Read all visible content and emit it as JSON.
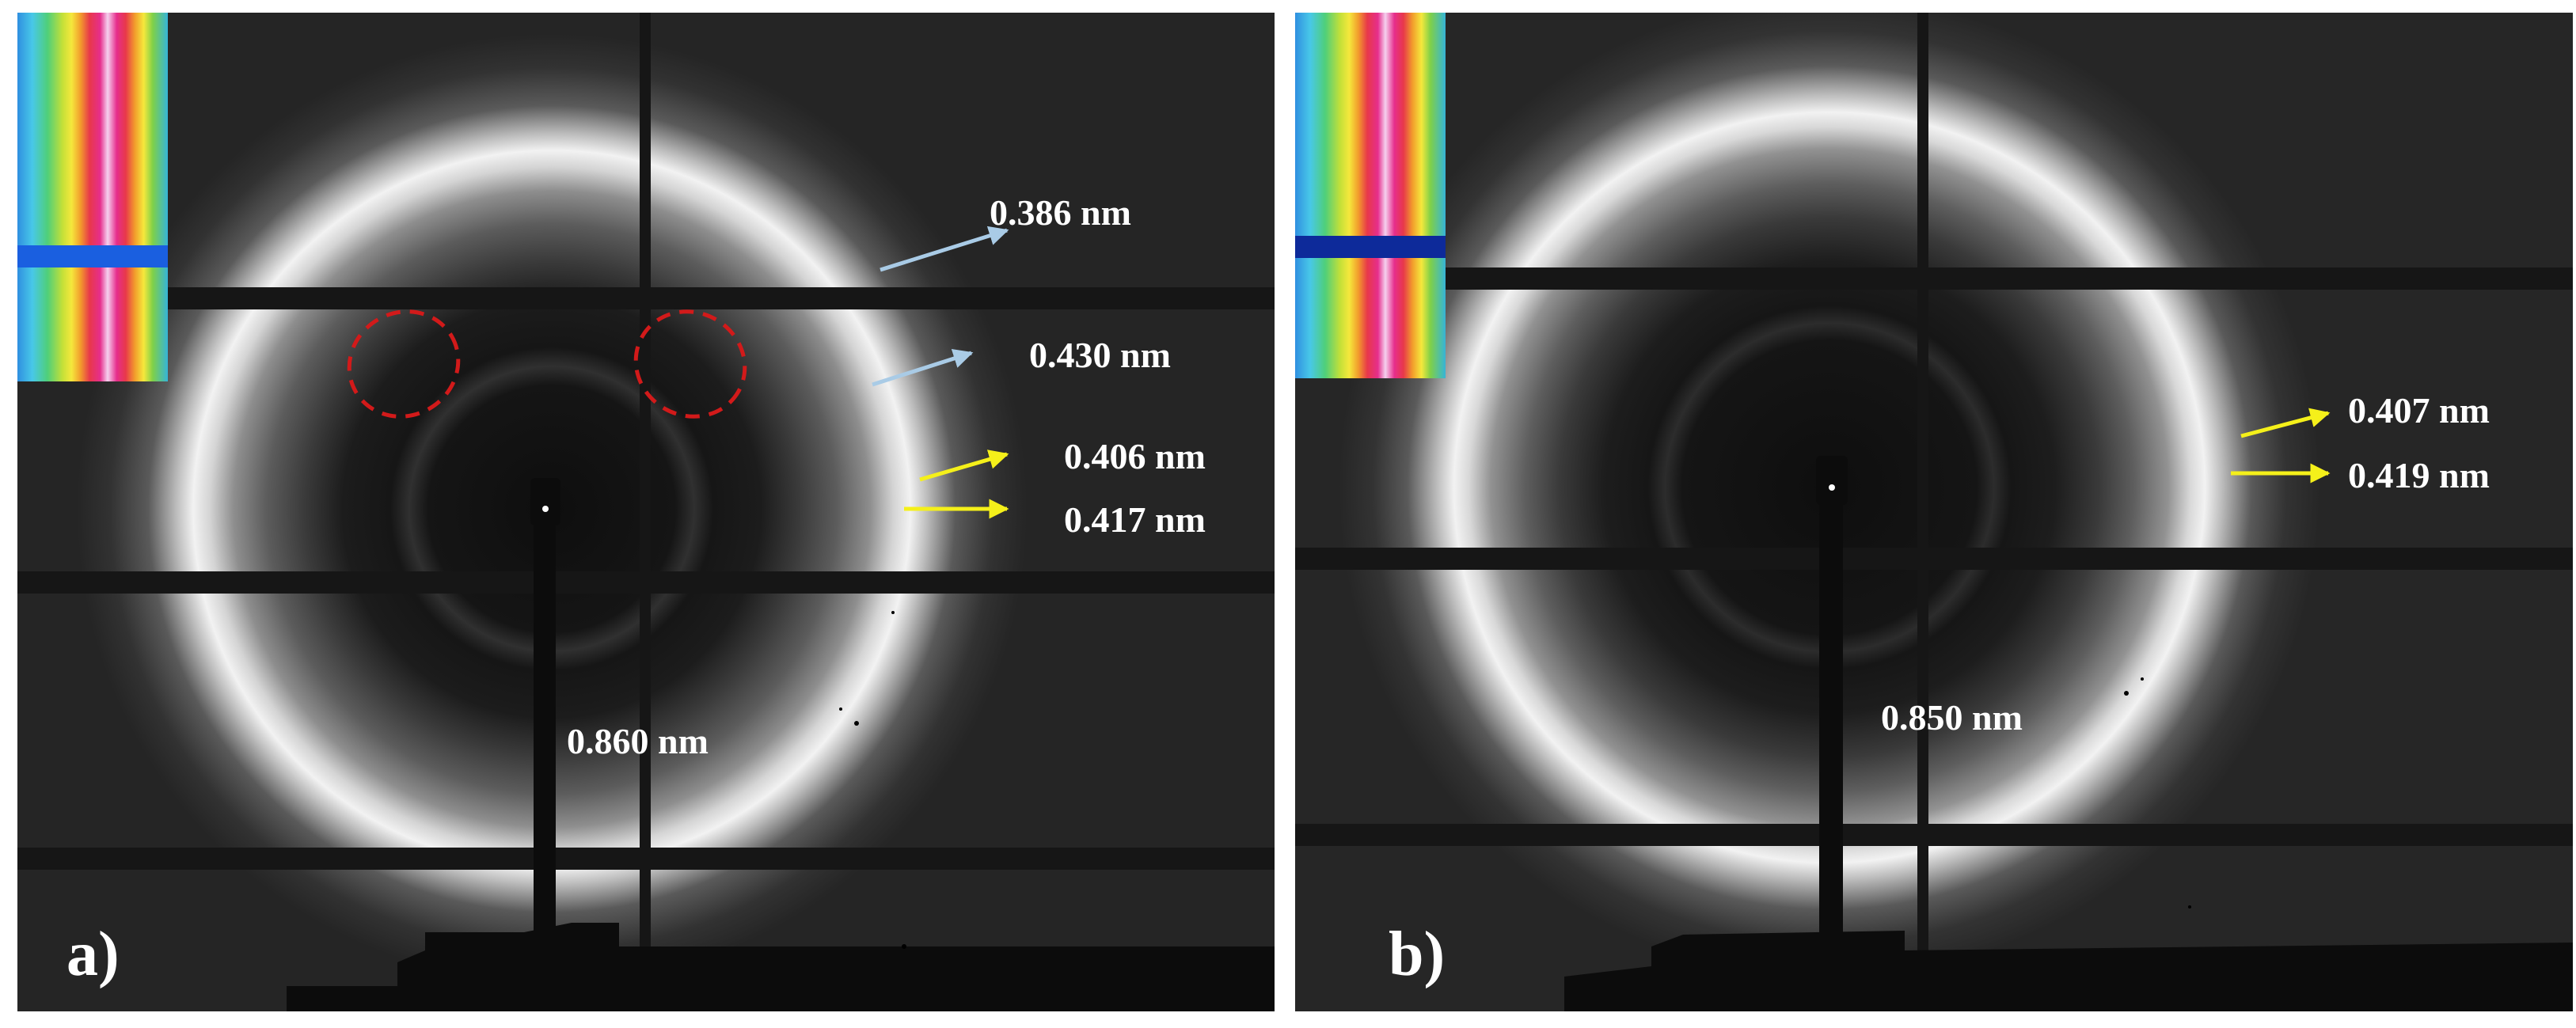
{
  "colors": {
    "background": "#ffffff",
    "detector_background": "#1c1c1c",
    "ring_glow": "#f2f2f2",
    "label_text": "#ffffff",
    "arrow_light_blue": "#a9cbe6",
    "arrow_yellow": "#f5f01a",
    "dashed_ellipse": "#d21a1a",
    "inset_palette": [
      "#2f8fe0",
      "#48c8e8",
      "#4fcf7a",
      "#c4e038",
      "#f5e83c",
      "#f29c2c",
      "#e8384a",
      "#e62e8c",
      "#f5d0ee"
    ],
    "inset_band": "#1a5fe0"
  },
  "panels": [
    {
      "letter": "a)",
      "rings": [
        {
          "label": "0.386 nm",
          "arrow_color": "light-blue"
        },
        {
          "label": "0.430 nm",
          "arrow_color": "light-blue"
        },
        {
          "label": "0.406 nm",
          "arrow_color": "yellow"
        },
        {
          "label": "0.417 nm",
          "arrow_color": "yellow"
        },
        {
          "label": "0.860 nm",
          "arrow_color": "none"
        }
      ],
      "highlight_marks": [
        "dashed-red-ellipse",
        "dashed-red-ellipse"
      ],
      "inset": "rainbow-intensity-map"
    },
    {
      "letter": "b)",
      "rings": [
        {
          "label": "0.407 nm",
          "arrow_color": "yellow"
        },
        {
          "label": "0.419 nm",
          "arrow_color": "yellow"
        },
        {
          "label": "0.850 nm",
          "arrow_color": "none"
        }
      ],
      "inset": "rainbow-intensity-map"
    }
  ]
}
